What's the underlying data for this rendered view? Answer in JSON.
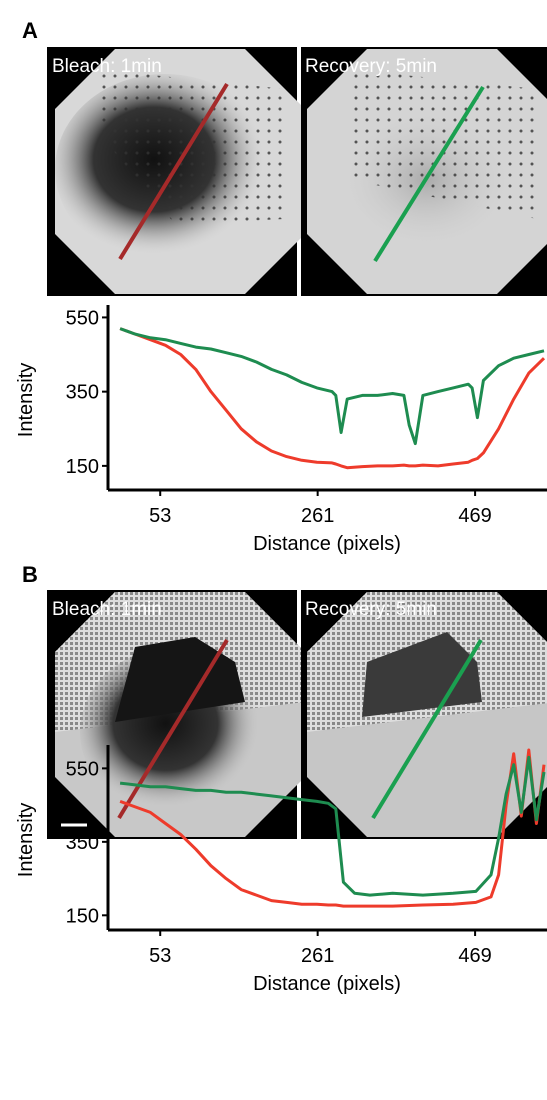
{
  "panels": [
    {
      "label": "A",
      "images": [
        "Bleach: 1min",
        "Recovery: 5min"
      ]
    },
    {
      "label": "B",
      "images": [
        "Bleach: 1min",
        "Recovery: 5min"
      ]
    }
  ],
  "chart_data": [
    {
      "type": "line",
      "xlabel": "Distance (pixels)",
      "ylabel": "Intensity",
      "x": [
        0,
        20,
        40,
        60,
        80,
        100,
        120,
        140,
        160,
        180,
        200,
        220,
        240,
        260,
        280,
        285,
        292,
        300,
        320,
        340,
        360,
        375,
        382,
        390,
        400,
        420,
        440,
        460,
        465,
        472,
        480,
        500,
        520,
        540,
        560
      ],
      "series": [
        {
          "color": "#ee3b2b",
          "values": [
            520,
            505,
            490,
            475,
            450,
            410,
            350,
            300,
            250,
            215,
            190,
            175,
            165,
            160,
            158,
            155,
            150,
            145,
            148,
            150,
            150,
            152,
            150,
            150,
            152,
            150,
            155,
            160,
            165,
            170,
            185,
            250,
            330,
            400,
            440
          ]
        },
        {
          "color": "#1e8c50",
          "values": [
            520,
            505,
            495,
            490,
            480,
            470,
            465,
            455,
            445,
            430,
            410,
            395,
            375,
            360,
            350,
            340,
            240,
            330,
            340,
            340,
            345,
            340,
            260,
            210,
            340,
            350,
            360,
            370,
            360,
            280,
            380,
            420,
            440,
            450,
            460
          ]
        }
      ],
      "xlim": [
        -16,
        564
      ],
      "ylim": [
        85,
        570
      ],
      "xticks": [
        53,
        261,
        469
      ],
      "yticks": [
        150,
        350,
        550
      ]
    },
    {
      "type": "line",
      "xlabel": "Distance (pixels)",
      "ylabel": "Intensity",
      "x": [
        0,
        20,
        40,
        60,
        80,
        100,
        120,
        140,
        160,
        180,
        200,
        220,
        240,
        260,
        275,
        285,
        295,
        310,
        330,
        360,
        400,
        440,
        470,
        490,
        500,
        510,
        520,
        530,
        540,
        550,
        560
      ],
      "series": [
        {
          "color": "#ee3b2b",
          "values": [
            460,
            445,
            430,
            400,
            370,
            330,
            285,
            250,
            220,
            205,
            190,
            185,
            180,
            180,
            178,
            178,
            175,
            175,
            175,
            175,
            178,
            180,
            185,
            200,
            260,
            450,
            590,
            420,
            600,
            400,
            560
          ]
        },
        {
          "color": "#1e8c50",
          "values": [
            510,
            505,
            500,
            500,
            495,
            490,
            490,
            485,
            485,
            480,
            475,
            470,
            465,
            460,
            455,
            440,
            240,
            210,
            205,
            210,
            205,
            210,
            215,
            260,
            360,
            480,
            560,
            430,
            580,
            410,
            540
          ]
        }
      ],
      "xlim": [
        -16,
        564
      ],
      "ylim": [
        110,
        600
      ],
      "xticks": [
        53,
        261,
        469
      ],
      "yticks": [
        150,
        350,
        550
      ]
    }
  ]
}
